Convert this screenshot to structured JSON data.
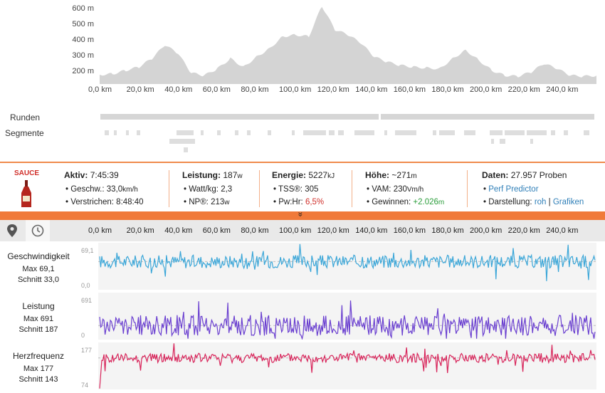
{
  "elevation": {
    "y_ticks": [
      "600 m",
      "500 m",
      "400 m",
      "300 m",
      "200 m"
    ],
    "x_ticks": [
      "0,0 km",
      "20,0 km",
      "40,0 km",
      "60,0 km",
      "80,0 km",
      "100,0 km",
      "120,0 km",
      "140,0 km",
      "160,0 km",
      "180,0 km",
      "200,0 km",
      "220,0 km",
      "240,0 km"
    ],
    "profile_m": [
      205,
      210,
      230,
      250,
      300,
      380,
      330,
      215,
      200,
      240,
      300,
      250,
      310,
      360,
      430,
      440,
      430,
      610,
      470,
      440,
      390,
      310,
      280,
      260,
      250,
      245,
      240,
      300,
      350,
      290,
      230,
      200,
      195,
      220,
      270,
      240,
      200,
      195,
      200
    ]
  },
  "rows": {
    "laps_label": "Runden",
    "segments_label": "Segmente"
  },
  "sauce": {
    "logo": "SAUCE",
    "active": {
      "label": "Aktiv:",
      "value": "7:45:39",
      "speed_label": "Geschw.:",
      "speed_value": "33,0",
      "speed_unit": "km/h",
      "elapsed_label": "Verstrichen:",
      "elapsed_value": "8:48:40"
    },
    "power": {
      "label": "Leistung:",
      "value": "187",
      "unit": "w",
      "wkg_label": "Watt/kg:",
      "wkg_value": "2,3",
      "np_label": "NP®:",
      "np_value": "213",
      "np_unit": "w"
    },
    "energy": {
      "label": "Energie:",
      "value": "5227",
      "unit": "kJ",
      "tss_label": "TSS®:",
      "tss_value": "305",
      "pwhr_label": "Pw:Hr:",
      "pwhr_value": "6,5%"
    },
    "elevation": {
      "label": "Höhe:",
      "value": "~271",
      "unit": "m",
      "vam_label": "VAM:",
      "vam_value": "230",
      "vam_unit": "Vm/h",
      "gain_label": "Gewinnen:",
      "gain_value": "+2.026",
      "gain_unit": "m"
    },
    "data": {
      "label": "Daten:",
      "value": "27.957 Proben",
      "predictor": "Perf Predictor",
      "display_label": "Darstellung:",
      "raw": "roh",
      "sep": "|",
      "graphs": "Grafiken"
    }
  },
  "expand_glyph": "»",
  "stream_x_ticks": [
    "0,0 km",
    "20,0 km",
    "40,0 km",
    "60,0 km",
    "80,0 km",
    "100,0 km",
    "120,0 km",
    "140,0 km",
    "160,0 km",
    "180,0 km",
    "200,0 km",
    "220,0 km",
    "240,0 km"
  ],
  "streams": [
    {
      "name": "Geschwindigkeit",
      "max_label": "Max 69,1",
      "avg_label": "Schnitt 33,0",
      "ymax": "69,1",
      "ymin": "0,0",
      "color": "#3aa6d8",
      "base": 0.6,
      "amp": 0.14,
      "spikes": 0.25
    },
    {
      "name": "Leistung",
      "max_label": "Max 691",
      "avg_label": "Schnitt 187",
      "ymax": "691",
      "ymin": "0",
      "color": "#6a3fd0",
      "base": 0.3,
      "amp": 0.22,
      "spikes": 0.3
    },
    {
      "name": "Herzfrequenz",
      "max_label": "Max 177",
      "avg_label": "Schnitt 143",
      "ymax": "177",
      "ymin": "74",
      "color": "#d8245a",
      "base": 0.67,
      "amp": 0.1,
      "spikes": 0.18
    }
  ],
  "icons": {
    "location": "map-pin-icon",
    "time": "clock-icon",
    "bottle": "sauce-bottle-icon"
  }
}
